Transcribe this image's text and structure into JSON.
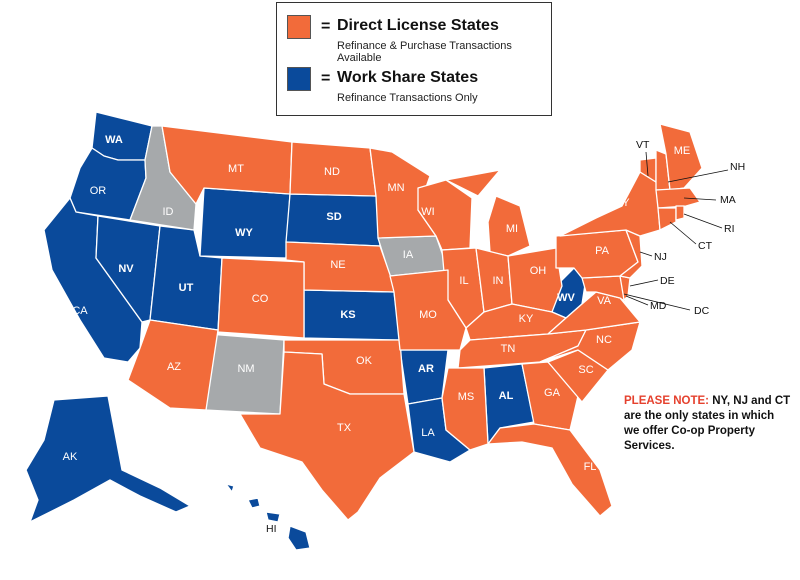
{
  "colors": {
    "direct": "#f26b3a",
    "workshare": "#0a4a9b",
    "none": "#a6a9ab",
    "note_highlight": "#e5412e"
  },
  "legend": {
    "direct_title": "Direct License States",
    "direct_sub": "Refinance & Purchase Transactions Available",
    "workshare_title": "Work Share States",
    "workshare_sub": "Refinance Transactions Only",
    "equals": "="
  },
  "note": {
    "highlight": "PLEASE NOTE:",
    "line1": "NY, NJ and CT",
    "line2": "are the only states in which",
    "line3": "we offer Co-op Property Services."
  },
  "states": {
    "WA": "WA",
    "OR": "OR",
    "CA": "CA",
    "NV": "NV",
    "ID": "ID",
    "MT": "MT",
    "WY": "WY",
    "UT": "UT",
    "AZ": "AZ",
    "CO": "CO",
    "NM": "NM",
    "ND": "ND",
    "SD": "SD",
    "NE": "NE",
    "KS": "KS",
    "OK": "OK",
    "TX": "TX",
    "MN": "MN",
    "IA": "IA",
    "MO": "MO",
    "AR": "AR",
    "LA": "LA",
    "WI": "WI",
    "IL": "IL",
    "MS": "MS",
    "MI": "MI",
    "IN": "IN",
    "KY": "KY",
    "TN": "TN",
    "AL": "AL",
    "OH": "OH",
    "WV": "WV",
    "GA": "GA",
    "FL": "FL",
    "SC": "SC",
    "NC": "NC",
    "VA": "VA",
    "PA": "PA",
    "NY": "NY",
    "ME": "ME",
    "VT": "VT",
    "NH": "NH",
    "MA": "MA",
    "RI": "RI",
    "CT": "CT",
    "NJ": "NJ",
    "DE": "DE",
    "MD": "MD",
    "DC": "DC",
    "AK": "AK",
    "HI": "HI"
  }
}
